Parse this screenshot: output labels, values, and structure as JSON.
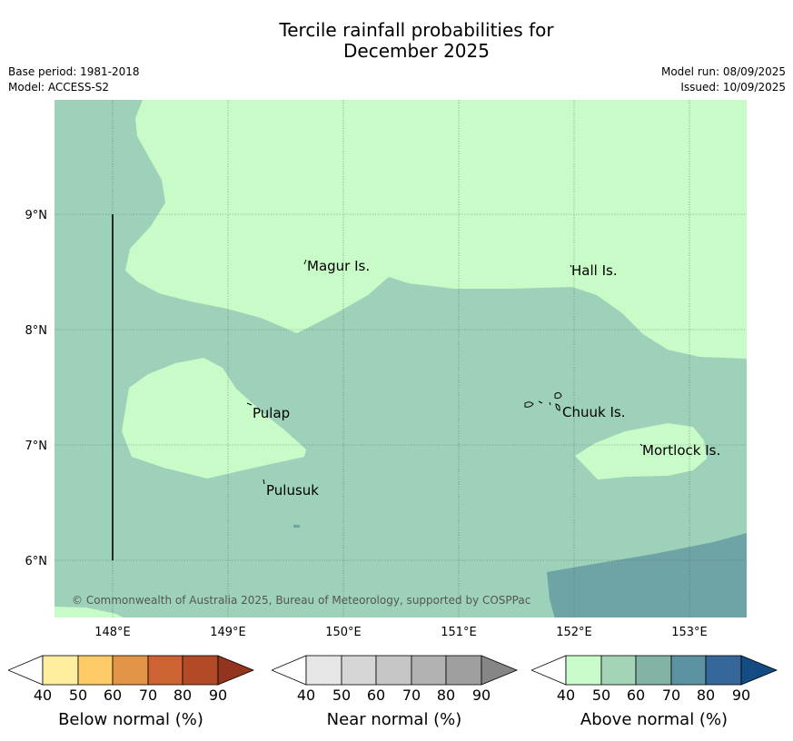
{
  "title": {
    "line1": "Tercile rainfall probabilities for",
    "line2": "December 2025"
  },
  "meta": {
    "base_period": "Base period: 1981-2018",
    "model": "Model: ACCESS-S2",
    "model_run": "Model run: 08/09/2025",
    "issued": "Issued: 10/09/2025"
  },
  "map": {
    "lat_labels": [
      "9°N",
      "8°N",
      "7°N",
      "6°N"
    ],
    "lon_labels": [
      "148°E",
      "149°E",
      "150°E",
      "151°E",
      "152°E",
      "153°E"
    ],
    "places": [
      "Magur Is.",
      "Hall Is.",
      "Pulap",
      "Chuuk Is.",
      "Mortlock Is.",
      "Pulusuk"
    ],
    "copyright": "© Commonwealth of Australia 2025, Bureau of Meteorology, supported by COSPPac",
    "colors": {
      "above_40_50": "#c8fbc8",
      "above_50_60": "#9dd1b9",
      "above_60_70": "#6ea4a6"
    }
  },
  "legends": [
    {
      "title": "Below normal (%)",
      "ticks": [
        "40",
        "50",
        "60",
        "70",
        "80",
        "90"
      ],
      "colors": [
        "#ffffff",
        "#ffeea0",
        "#fecb66",
        "#e29546",
        "#cd6232",
        "#b24a26",
        "#93341f"
      ]
    },
    {
      "title": "Near normal (%)",
      "ticks": [
        "40",
        "50",
        "60",
        "70",
        "80",
        "90"
      ],
      "colors": [
        "#ffffff",
        "#e6e6e6",
        "#d6d6d6",
        "#c6c6c6",
        "#b2b2b2",
        "#9f9f9f",
        "#868686"
      ]
    },
    {
      "title": "Above normal (%)",
      "ticks": [
        "40",
        "50",
        "60",
        "70",
        "80",
        "90"
      ],
      "colors": [
        "#ffffff",
        "#c8fbc8",
        "#a3d4b6",
        "#83b3a5",
        "#5b93a2",
        "#35679a",
        "#124c82"
      ]
    }
  ]
}
